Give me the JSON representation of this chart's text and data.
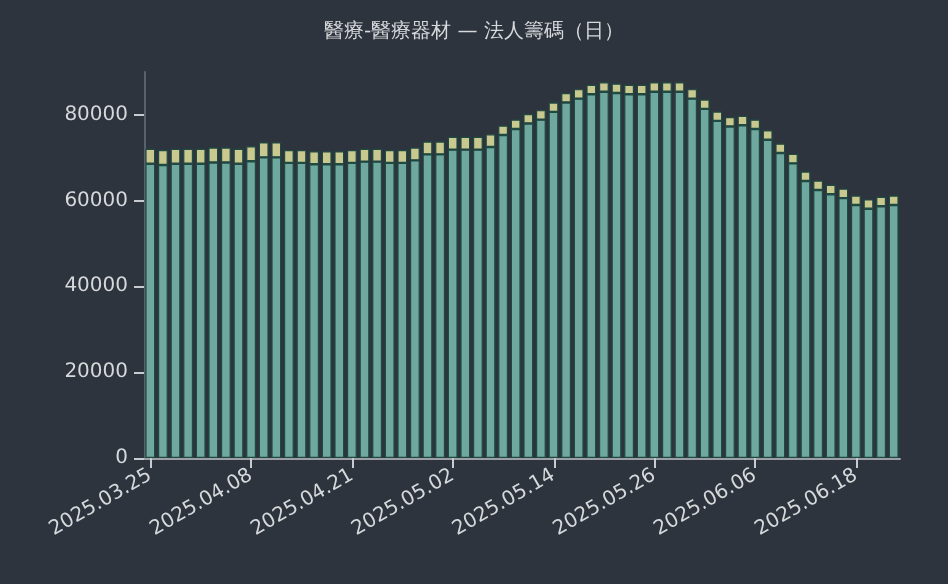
{
  "chart_data": {
    "type": "bar",
    "title": "醫療-醫療器材 — 法人籌碼（日）",
    "stacked": true,
    "grid": false,
    "categories": [
      "2025.03.25",
      null,
      null,
      null,
      null,
      null,
      null,
      null,
      "2025.04.08",
      null,
      null,
      null,
      null,
      null,
      null,
      null,
      "2025.04.21",
      null,
      null,
      null,
      null,
      null,
      null,
      null,
      "2025.05.02",
      null,
      null,
      null,
      null,
      null,
      null,
      null,
      "2025.05.14",
      null,
      null,
      null,
      null,
      null,
      null,
      null,
      "2025.05.26",
      null,
      null,
      null,
      null,
      null,
      null,
      null,
      "2025.06.06",
      null,
      null,
      null,
      null,
      null,
      null,
      null,
      "2025.06.18",
      null,
      null,
      null
    ],
    "series": [
      {
        "color": "#6fa89e",
        "values": [
          68600,
          68300,
          68600,
          68600,
          68600,
          68900,
          68900,
          68600,
          69200,
          70100,
          70100,
          68800,
          68800,
          68500,
          68500,
          68500,
          68800,
          69100,
          69100,
          68800,
          68800,
          69400,
          70800,
          70800,
          71900,
          71900,
          71900,
          72500,
          75300,
          76700,
          78000,
          78900,
          80700,
          82900,
          83800,
          84800,
          85400,
          85100,
          84800,
          84800,
          85400,
          85400,
          85400,
          83800,
          81400,
          78600,
          77300,
          77600,
          76700,
          74200,
          71100,
          68700,
          64600,
          62500,
          61500,
          60600,
          59000,
          58100,
          58700,
          59000
        ]
      },
      {
        "color": "#c9c98f",
        "values": [
          3500,
          3500,
          3500,
          3500,
          3500,
          3500,
          3500,
          3500,
          3500,
          3500,
          3500,
          3000,
          3000,
          3000,
          3000,
          3000,
          3000,
          3000,
          3000,
          3000,
          3000,
          3000,
          3000,
          3000,
          3000,
          3000,
          3000,
          3000,
          2200,
          2200,
          2200,
          2200,
          2200,
          2200,
          2200,
          2200,
          2200,
          2200,
          2200,
          2200,
          2200,
          2200,
          2200,
          2200,
          2200,
          2200,
          2200,
          2200,
          2200,
          2200,
          2200,
          2200,
          2200,
          2200,
          2200,
          2200,
          2200,
          2200,
          2200,
          2200
        ]
      }
    ],
    "ylim": [
      0,
      90000
    ],
    "yticks": [
      0,
      20000,
      40000,
      60000,
      80000
    ]
  }
}
